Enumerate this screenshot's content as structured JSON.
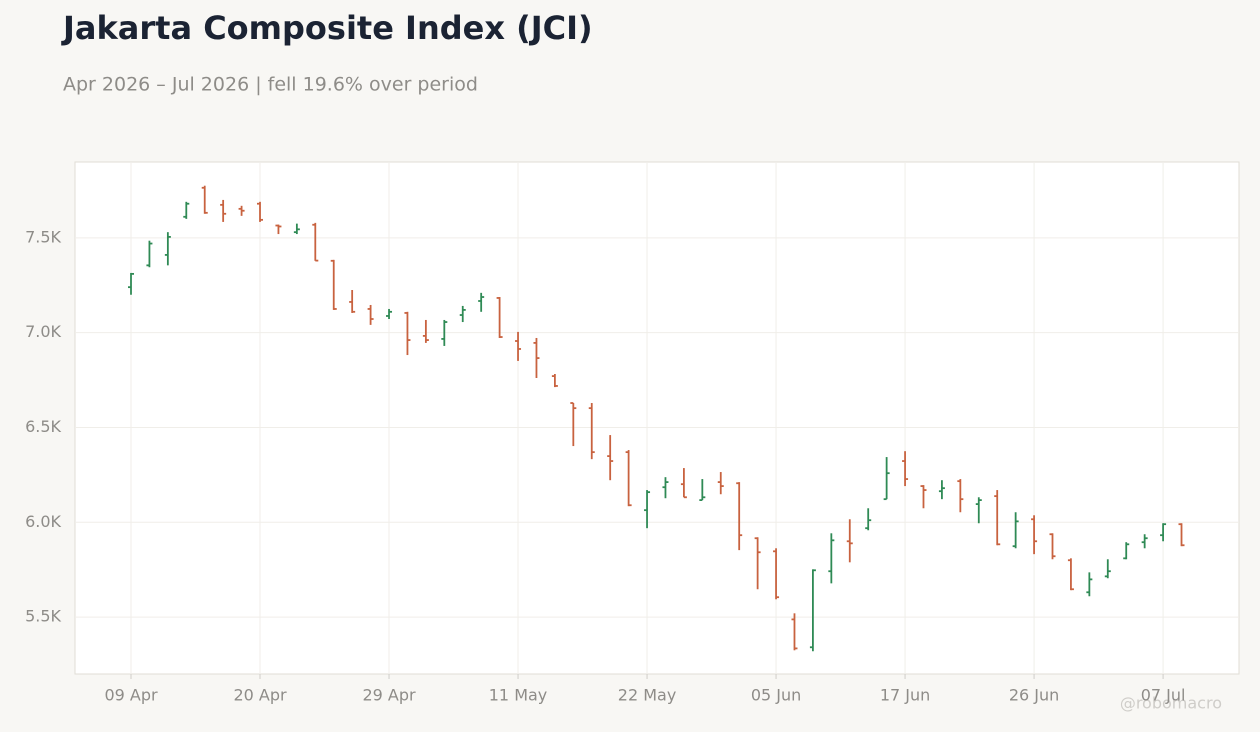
{
  "chart_data": {
    "type": "ohlc",
    "title": "Jakarta Composite Index (JCI)",
    "subtitle": "Apr 2026 – Jul 2026 | fell 19.6% over period",
    "watermark": "@robomacro",
    "categories": [
      "09 Apr",
      null,
      null,
      null,
      null,
      null,
      null,
      "20 Apr",
      null,
      null,
      null,
      null,
      null,
      null,
      "29 Apr",
      null,
      null,
      null,
      null,
      null,
      null,
      "11 May",
      null,
      null,
      null,
      null,
      null,
      null,
      "22 May",
      null,
      null,
      null,
      null,
      null,
      null,
      "05 Jun",
      null,
      null,
      null,
      null,
      null,
      null,
      "17 Jun",
      null,
      null,
      null,
      null,
      null,
      null,
      "26 Jun",
      null,
      null,
      null,
      null,
      null,
      null,
      "07 Jul",
      null
    ],
    "open": [
      7240,
      7355,
      7410,
      7611,
      7764,
      7674,
      7653,
      7680,
      7565,
      7530,
      7569,
      7379,
      7162,
      7125,
      7088,
      7104,
      6983,
      6967,
      7093,
      7167,
      7183,
      6956,
      6946,
      6771,
      6629,
      6602,
      6349,
      6370,
      6064,
      6185,
      6201,
      6117,
      6212,
      6206,
      5916,
      5847,
      5488,
      5341,
      5742,
      5900,
      5969,
      6122,
      6323,
      6191,
      6164,
      6217,
      6096,
      6138,
      5874,
      6016,
      5937,
      5800,
      5631,
      5715,
      5810,
      5895,
      5932,
      5990
    ],
    "high": [
      7315,
      7485,
      7530,
      7690,
      7775,
      7700,
      7669,
      7690,
      7570,
      7575,
      7579,
      7384,
      7225,
      7146,
      7125,
      7110,
      7067,
      7067,
      7141,
      7210,
      7188,
      7004,
      6972,
      6782,
      6629,
      6629,
      6460,
      6381,
      6170,
      6238,
      6286,
      6228,
      6265,
      6212,
      5921,
      5863,
      5520,
      5752,
      5942,
      6016,
      6074,
      6344,
      6375,
      6196,
      6222,
      6228,
      6132,
      6170,
      6053,
      6037,
      5942,
      5810,
      5736,
      5805,
      5895,
      5937,
      5995,
      5995
    ],
    "low": [
      7200,
      7345,
      7355,
      7600,
      7627,
      7584,
      7616,
      7584,
      7520,
      7520,
      7379,
      7120,
      7104,
      7041,
      7072,
      6882,
      6946,
      6930,
      7056,
      7110,
      6972,
      6851,
      6761,
      6713,
      6402,
      6333,
      6222,
      6085,
      5969,
      6127,
      6132,
      6117,
      6148,
      5853,
      5647,
      5594,
      5325,
      5320,
      5678,
      5789,
      5958,
      6122,
      6191,
      6074,
      6122,
      6053,
      5995,
      5879,
      5863,
      5832,
      5805,
      5642,
      5610,
      5705,
      5805,
      5863,
      5900,
      5874
    ],
    "close": [
      7310,
      7470,
      7505,
      7680,
      7632,
      7627,
      7643,
      7595,
      7560,
      7545,
      7380,
      7125,
      7110,
      7072,
      7110,
      6961,
      6961,
      7056,
      7120,
      7188,
      6977,
      6914,
      6866,
      6719,
      6602,
      6370,
      6323,
      6090,
      6159,
      6212,
      6132,
      6132,
      6191,
      5932,
      5842,
      5605,
      5335,
      5747,
      5905,
      5889,
      6011,
      6259,
      6228,
      6170,
      6180,
      6122,
      6117,
      5884,
      6005,
      5900,
      5821,
      5647,
      5699,
      5742,
      5884,
      5916,
      5990,
      5879
    ],
    "up_color": "#2f8a55",
    "down_color": "#c8623f",
    "ylim": [
      5200,
      7900
    ],
    "yticks": [
      {
        "value": 5500,
        "label": "5.5K"
      },
      {
        "value": 6000,
        "label": "6.0K"
      },
      {
        "value": 6500,
        "label": "6.5K"
      },
      {
        "value": 7000,
        "label": "7.0K"
      },
      {
        "value": 7500,
        "label": "7.5K"
      }
    ],
    "grid": true
  }
}
